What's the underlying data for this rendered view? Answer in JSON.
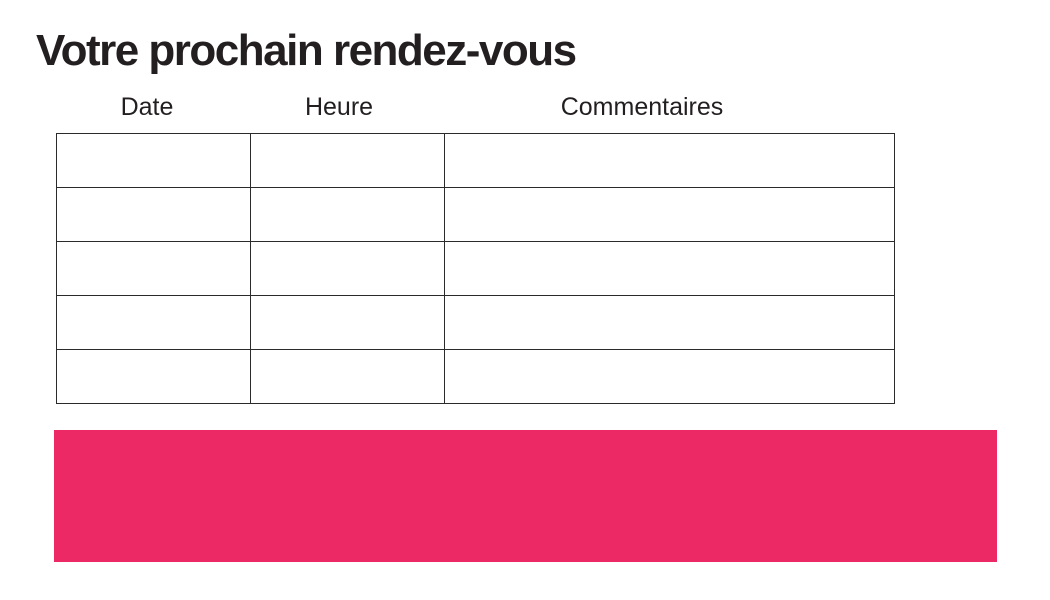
{
  "page": {
    "title": "Votre prochain rendez-vous",
    "background_color": "#ffffff",
    "text_color": "#231f20"
  },
  "appointment_table": {
    "headers": [
      "Date",
      "Heure",
      "Commentaires"
    ],
    "row_count": 5,
    "column_count": 3,
    "border_color": "#2b2b2b",
    "cells": [
      [
        "",
        "",
        ""
      ],
      [
        "",
        "",
        ""
      ],
      [
        "",
        "",
        ""
      ],
      [
        "",
        "",
        ""
      ],
      [
        "",
        "",
        ""
      ]
    ]
  },
  "highlight_bar": {
    "color": "#ED2965"
  }
}
